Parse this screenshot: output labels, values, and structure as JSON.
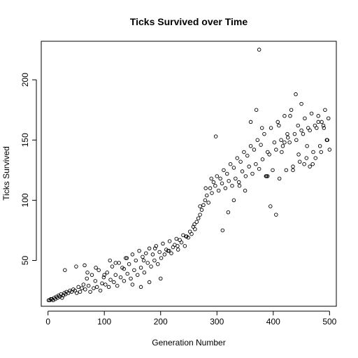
{
  "chart_data": {
    "type": "scatter",
    "title": "Ticks Survived over Time",
    "xlabel": "Generation Number",
    "ylabel": "Ticks Survived",
    "xlim": [
      -12,
      512
    ],
    "ylim": [
      12,
      232
    ],
    "xticks": [
      0,
      100,
      200,
      300,
      400,
      500
    ],
    "yticks": [
      50,
      100,
      150,
      200
    ],
    "grid": false,
    "legend": "none",
    "point_style": "open-circle",
    "point_color": "#000000",
    "series": [
      {
        "x": [
          1,
          3,
          5,
          7,
          9,
          11,
          13,
          15,
          17,
          19,
          21,
          23,
          25,
          27,
          29,
          31,
          33,
          36,
          39,
          42,
          45,
          48,
          51,
          54,
          57,
          60,
          63,
          66,
          69,
          72,
          75,
          78,
          81,
          84,
          87,
          90,
          93,
          96,
          99,
          102,
          105,
          108,
          111,
          114,
          117,
          120,
          123,
          126,
          129,
          132,
          135,
          138,
          141,
          144,
          147,
          150,
          153,
          156,
          159,
          162,
          165,
          168,
          171,
          174,
          177,
          180,
          183,
          186,
          189,
          192,
          195,
          198,
          201,
          204,
          207,
          210,
          213,
          216,
          219,
          222,
          225,
          228,
          231,
          234,
          237,
          240,
          243,
          246,
          249,
          252,
          255,
          258,
          261,
          264,
          267,
          270,
          273,
          276,
          279,
          282,
          285,
          288,
          291,
          294,
          297,
          300,
          303,
          306,
          309,
          312,
          315,
          318,
          321,
          324,
          327,
          330,
          333,
          336,
          339,
          342,
          345,
          348,
          351,
          354,
          357,
          360,
          363,
          366,
          369,
          372,
          375,
          378,
          381,
          384,
          387,
          390,
          393,
          396,
          399,
          402,
          405,
          408,
          411,
          414,
          417,
          420,
          423,
          426,
          429,
          432,
          435,
          438,
          441,
          444,
          447,
          450,
          453,
          456,
          459,
          462,
          465,
          468,
          471,
          474,
          477,
          480,
          483,
          486,
          489,
          492,
          495,
          498,
          30,
          50,
          65,
          70,
          85,
          100,
          110,
          120,
          135,
          140,
          150,
          165,
          170,
          180,
          190,
          200,
          215,
          230,
          245,
          260,
          270,
          280,
          290,
          298,
          310,
          320,
          330,
          340,
          350,
          360,
          370,
          380,
          388,
          395,
          405,
          415,
          425,
          430,
          440,
          450,
          460,
          470,
          480,
          490,
          496,
          500,
          375,
          390,
          410,
          420,
          435,
          445,
          455,
          465,
          475,
          485
        ],
        "y": [
          17,
          17,
          18,
          18,
          17,
          19,
          18,
          20,
          19,
          21,
          20,
          22,
          19,
          21,
          23,
          22,
          24,
          23,
          25,
          24,
          26,
          25,
          23,
          28,
          24,
          27,
          30,
          26,
          35,
          29,
          24,
          38,
          27,
          33,
          28,
          42,
          25,
          31,
          36,
          30,
          40,
          28,
          34,
          45,
          32,
          38,
          29,
          48,
          36,
          44,
          33,
          52,
          39,
          47,
          35,
          55,
          42,
          50,
          38,
          58,
          44,
          53,
          40,
          56,
          48,
          60,
          45,
          55,
          50,
          62,
          47,
          57,
          52,
          64,
          55,
          59,
          58,
          66,
          56,
          61,
          63,
          68,
          59,
          67,
          65,
          71,
          62,
          70,
          69,
          74,
          72,
          78,
          76,
          82,
          85,
          88,
          92,
          96,
          100,
          104,
          98,
          110,
          106,
          115,
          112,
          120,
          108,
          118,
          114,
          125,
          110,
          122,
          116,
          130,
          112,
          127,
          118,
          135,
          115,
          132,
          124,
          140,
          120,
          137,
          128,
          145,
          122,
          142,
          130,
          150,
          126,
          146,
          134,
          155,
          120,
          140,
          138,
          160,
          125,
          148,
          142,
          165,
          118,
          150,
          145,
          170,
          125,
          152,
          148,
          175,
          128,
          155,
          150,
          162,
          132,
          158,
          155,
          168,
          135,
          160,
          158,
          172,
          140,
          162,
          160,
          170,
          145,
          165,
          162,
          175,
          150,
          168,
          42,
          45,
          46,
          40,
          44,
          38,
          50,
          48,
          43,
          52,
          30,
          28,
          50,
          32,
          60,
          35,
          58,
          62,
          70,
          80,
          95,
          110,
          118,
          153,
          75,
          90,
          100,
          112,
          108,
          165,
          175,
          160,
          120,
          95,
          88,
          140,
          155,
          170,
          188,
          180,
          145,
          130,
          165,
          160,
          150,
          142,
          225,
          120,
          162,
          148,
          125,
          138,
          130,
          128,
          135,
          140
        ]
      }
    ]
  }
}
